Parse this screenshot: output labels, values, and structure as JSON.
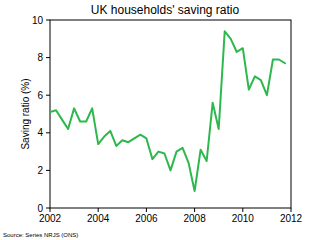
{
  "chart_data": {
    "type": "line",
    "title": "UK households' saving ratio",
    "y_label": "Saving ratio (%)",
    "source": "Source: Series NRJS (ONS)",
    "x": [
      2002.0,
      2002.25,
      2002.5,
      2002.75,
      2003.0,
      2003.25,
      2003.5,
      2003.75,
      2004.0,
      2004.25,
      2004.5,
      2004.75,
      2005.0,
      2005.25,
      2005.5,
      2005.75,
      2006.0,
      2006.25,
      2006.5,
      2006.75,
      2007.0,
      2007.25,
      2007.5,
      2007.75,
      2008.0,
      2008.25,
      2008.5,
      2008.75,
      2009.0,
      2009.25,
      2009.5,
      2009.75,
      2010.0,
      2010.25,
      2010.5,
      2010.75,
      2011.0,
      2011.25,
      2011.5,
      2011.75
    ],
    "series": [
      {
        "name": "Saving ratio",
        "color": "#2db84d",
        "values": [
          5.1,
          5.2,
          4.7,
          4.2,
          5.3,
          4.6,
          4.6,
          5.3,
          3.4,
          3.8,
          4.1,
          3.3,
          3.6,
          3.5,
          3.7,
          3.9,
          3.7,
          2.6,
          3.0,
          2.9,
          2.0,
          3.0,
          3.2,
          2.4,
          0.9,
          3.1,
          2.5,
          5.6,
          4.2,
          9.4,
          9.0,
          8.3,
          8.5,
          6.3,
          7.0,
          6.8,
          6.0,
          7.9,
          7.9,
          7.7
        ]
      }
    ],
    "xlim": [
      2002,
      2012
    ],
    "xticks": [
      2002,
      2004,
      2006,
      2008,
      2010,
      2012
    ],
    "ylim": [
      0,
      10
    ],
    "yticks": [
      0,
      2,
      4,
      6,
      8,
      10
    ],
    "grid": false
  }
}
